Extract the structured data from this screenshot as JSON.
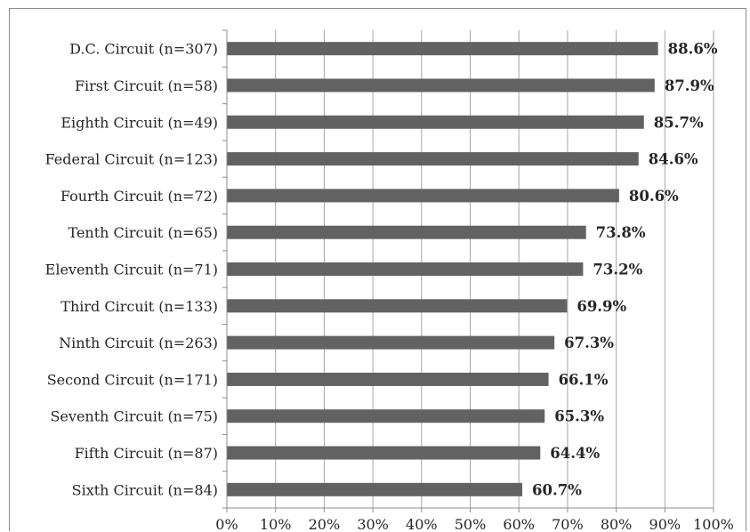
{
  "chart_data": {
    "type": "bar",
    "orientation": "horizontal",
    "categories": [
      "D.C. Circuit (n=307)",
      "First Circuit (n=58)",
      "Eighth Circuit (n=49)",
      "Federal Circuit (n=123)",
      "Fourth Circuit (n=72)",
      "Tenth Circuit (n=65)",
      "Eleventh Circuit (n=71)",
      "Third Circuit (n=133)",
      "Ninth Circuit (n=263)",
      "Second Circuit (n=171)",
      "Seventh Circuit (n=75)",
      "Fifth Circuit (n=87)",
      "Sixth Circuit (n=84)"
    ],
    "values": [
      88.6,
      87.9,
      85.7,
      84.6,
      80.6,
      73.8,
      73.2,
      69.9,
      67.3,
      66.1,
      65.3,
      64.4,
      60.7
    ],
    "data_labels": [
      "88.6%",
      "87.9%",
      "85.7%",
      "84.6%",
      "80.6%",
      "73.8%",
      "73.2%",
      "69.9%",
      "67.3%",
      "66.1%",
      "65.3%",
      "64.4%",
      "60.7%"
    ],
    "x_ticks": [
      "0%",
      "10%",
      "20%",
      "30%",
      "40%",
      "50%",
      "60%",
      "70%",
      "80%",
      "90%",
      "100%"
    ],
    "xlim": [
      0,
      100
    ],
    "title": "",
    "xlabel": "",
    "ylabel": "",
    "grid": "vertical",
    "legend": "none",
    "colors": {
      "bar": "#626262",
      "grid": "#a6a6a6",
      "axis": "#8c8c8c",
      "text": "#262626"
    }
  }
}
